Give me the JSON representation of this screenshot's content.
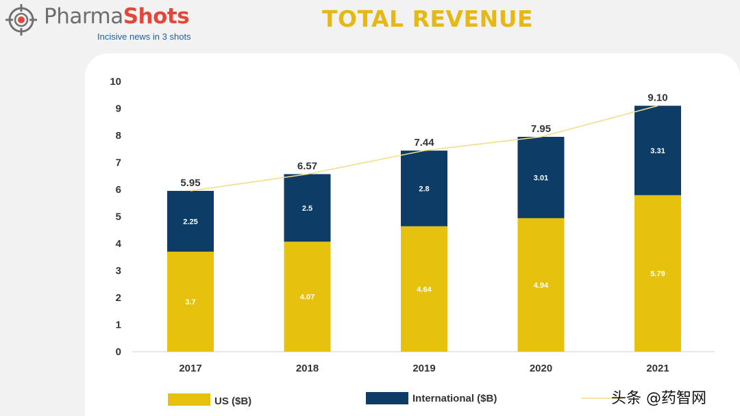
{
  "brand": {
    "name_part1": "Pharma",
    "name_part2": "Shots",
    "tagline": "Incisive news in 3 shots",
    "icon": "crosshair-target-icon"
  },
  "colors": {
    "us": "#e6c20f",
    "international": "#0d3d66",
    "total_line": "#f3dc8a",
    "title": "#e6b814"
  },
  "watermark": "头条 @药智网",
  "chart_data": {
    "type": "bar",
    "stacked": true,
    "title": "TOTAL REVENUE",
    "categories": [
      "2017",
      "2018",
      "2019",
      "2020",
      "2021"
    ],
    "series": [
      {
        "name": "US ($B)",
        "values": [
          3.7,
          4.07,
          4.64,
          4.94,
          5.79
        ]
      },
      {
        "name": "International ($B)",
        "values": [
          2.25,
          2.5,
          2.8,
          3.01,
          3.31
        ]
      }
    ],
    "totals": {
      "type": "line",
      "values": [
        5.95,
        6.57,
        7.44,
        7.95,
        9.1
      ],
      "labels": [
        "5.95",
        "6.57",
        "7.44",
        "7.95",
        "9.10"
      ]
    },
    "ylim": [
      0,
      10
    ],
    "yticks": [
      0,
      1,
      2,
      3,
      4,
      5,
      6,
      7,
      8,
      9,
      10
    ],
    "grid": false,
    "legend_position": "bottom"
  }
}
